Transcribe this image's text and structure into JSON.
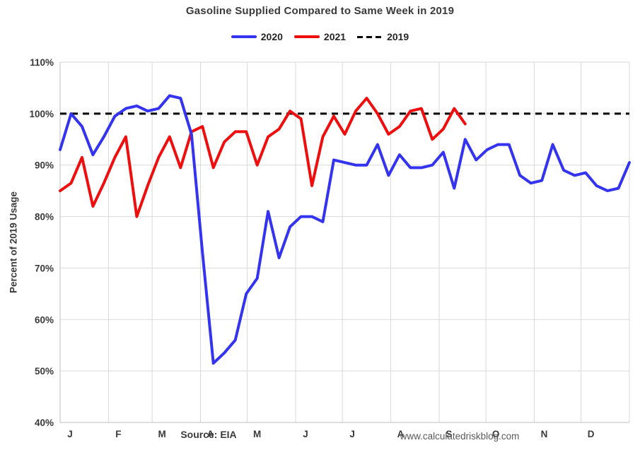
{
  "chart_data": {
    "type": "line",
    "title": "Gasoline Supplied Compared to Same Week in 2019",
    "ylabel": "Percent of 2019 Usage",
    "ylim": [
      40,
      110
    ],
    "ytick_values": [
      40,
      50,
      60,
      70,
      80,
      90,
      100,
      110
    ],
    "ytick_labels": [
      "40%",
      "50%",
      "60%",
      "70%",
      "80%",
      "90%",
      "100%",
      "110%"
    ],
    "xtick_labels": [
      "J",
      "F",
      "M",
      "A",
      "M",
      "J",
      "J",
      "A",
      "S",
      "O",
      "N",
      "D"
    ],
    "x_unit": "week",
    "weeks_total": 52,
    "grid": true,
    "legend_position": "top",
    "grid_color": "#d9d9d9",
    "axis_color": "#bfbfbf",
    "reference": {
      "name": "2019",
      "value": 100,
      "style": "dashed",
      "color": "#000000"
    },
    "series": [
      {
        "name": "2020",
        "color": "#3333f0",
        "values": [
          93,
          100,
          97.5,
          92,
          95.5,
          99.5,
          101,
          101.5,
          100.5,
          101,
          103.5,
          103,
          96,
          73,
          51.5,
          53.5,
          56,
          65,
          68,
          81,
          72,
          78,
          80,
          80,
          79,
          91,
          90.5,
          90,
          90,
          94,
          88,
          92,
          89.5,
          89.5,
          90,
          92.5,
          85.5,
          95,
          91,
          93,
          94,
          94,
          88,
          86.5,
          87,
          94,
          89,
          88,
          88.5,
          86,
          85,
          85.5,
          90.5
        ]
      },
      {
        "name": "2021",
        "color": "#ee0e0e",
        "values": [
          85,
          86.5,
          91.5,
          82,
          86.5,
          91.5,
          95.5,
          80,
          86,
          91.5,
          95.5,
          89.5,
          96.5,
          97.5,
          89.5,
          94.5,
          96.5,
          96.5,
          90,
          95.5,
          97,
          100.5,
          99,
          86,
          95.5,
          99.5,
          96,
          100.5,
          103,
          100,
          96,
          97.5,
          100.5,
          101,
          95,
          97,
          101,
          98
        ]
      }
    ]
  },
  "footer": {
    "source": "Source: EIA",
    "website": "www.calculatedriskblog.com"
  }
}
